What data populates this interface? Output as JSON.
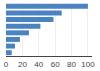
{
  "chart_data": {
    "type": "bar",
    "orientation": "horizontal",
    "categories": [
      null,
      null,
      null,
      null,
      null,
      null,
      null,
      null
    ],
    "values": [
      100,
      68,
      58,
      42,
      28,
      17,
      11,
      7
    ],
    "color": "#4b83c0",
    "xlim": [
      0,
      105
    ],
    "xticks": [
      0,
      20,
      40,
      60,
      80,
      100
    ],
    "grid": true,
    "tick_labels": "x"
  }
}
